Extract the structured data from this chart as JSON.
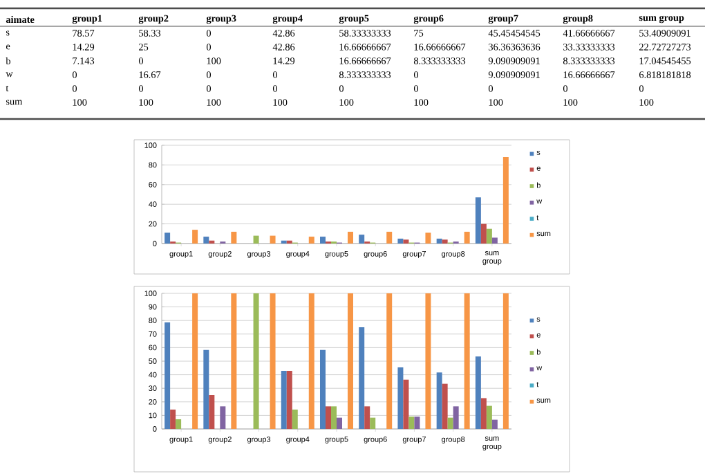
{
  "chart_data": [
    {
      "type": "other",
      "annotations": [
        "aimate",
        "group1",
        "group2",
        "group3",
        "group4",
        "group5",
        "group6",
        "group7",
        "group8",
        "sum group",
        "s",
        "78.57",
        "58.33",
        "0",
        "42.86",
        "58.33333333",
        "75",
        "45.45454545",
        "41.66666667",
        "53.40909091",
        "e",
        "14.29",
        "25",
        "0",
        "42.86",
        "16.66666667",
        "16.66666667",
        "36.36363636",
        "33.33333333",
        "22.72727273",
        "b",
        "7.143",
        "0",
        "100",
        "14.29",
        "16.66666667",
        "8.333333333",
        "9.090909091",
        "8.333333333",
        "17.04545455",
        "w",
        "0",
        "16.67",
        "0",
        "0",
        "8.333333333",
        "0",
        "9.090909091",
        "16.66666667",
        "6.818181818",
        "t",
        "0",
        "0",
        "0",
        "0",
        "0",
        "0",
        "0",
        "0",
        "0",
        "sum",
        "100",
        "100",
        "100",
        "100",
        "100",
        "100",
        "100",
        "100",
        "100"
      ]
    },
    {
      "type": "bar",
      "categories": [
        "group1",
        "group2",
        "group3",
        "group4",
        "group5",
        "group6",
        "group7",
        "group8",
        "sum group"
      ],
      "ylim": [
        0,
        100
      ],
      "yticks": [
        0,
        20,
        40,
        60,
        80,
        100
      ],
      "grid": "y",
      "legend": "right",
      "series": [
        {
          "name": "s",
          "color": "#4f81bd",
          "values": [
            11,
            7,
            0,
            3,
            7,
            9,
            5,
            5,
            47
          ]
        },
        {
          "name": "e",
          "color": "#c0504d",
          "values": [
            2,
            3,
            0,
            3,
            2,
            2,
            4,
            4,
            20
          ]
        },
        {
          "name": "b",
          "color": "#9bbb59",
          "values": [
            1,
            0,
            8,
            1,
            2,
            1,
            1,
            1,
            15
          ]
        },
        {
          "name": "w",
          "color": "#8064a2",
          "values": [
            0,
            2,
            0,
            0,
            1,
            0,
            1,
            2,
            6
          ]
        },
        {
          "name": "t",
          "color": "#4bacc6",
          "values": [
            0,
            0,
            0,
            0,
            0,
            0,
            0,
            0,
            0
          ]
        },
        {
          "name": "sum",
          "color": "#f79646",
          "values": [
            14,
            12,
            8,
            7,
            12,
            12,
            11,
            12,
            88
          ]
        }
      ]
    },
    {
      "type": "bar",
      "categories": [
        "group1",
        "group2",
        "group3",
        "group4",
        "group5",
        "group6",
        "group7",
        "group8",
        "sum group"
      ],
      "ylim": [
        0,
        100
      ],
      "yticks": [
        0,
        10,
        20,
        30,
        40,
        50,
        60,
        70,
        80,
        90,
        100
      ],
      "grid": "y",
      "legend": "right",
      "series": [
        {
          "name": "s",
          "color": "#4f81bd",
          "values": [
            78.57,
            58.33,
            0,
            42.86,
            58.33333333,
            75,
            45.45454545,
            41.66666667,
            53.40909091
          ]
        },
        {
          "name": "e",
          "color": "#c0504d",
          "values": [
            14.29,
            25,
            0,
            42.86,
            16.66666667,
            16.66666667,
            36.36363636,
            33.33333333,
            22.72727273
          ]
        },
        {
          "name": "b",
          "color": "#9bbb59",
          "values": [
            7.143,
            0,
            100,
            14.29,
            16.66666667,
            8.333333333,
            9.090909091,
            8.333333333,
            17.04545455
          ]
        },
        {
          "name": "w",
          "color": "#8064a2",
          "values": [
            0,
            16.67,
            0,
            0,
            8.333333333,
            0,
            9.090909091,
            16.66666667,
            6.818181818
          ]
        },
        {
          "name": "t",
          "color": "#4bacc6",
          "values": [
            0,
            0,
            0,
            0,
            0,
            0,
            0,
            0,
            0
          ]
        },
        {
          "name": "sum",
          "color": "#f79646",
          "values": [
            100,
            100,
            100,
            100,
            100,
            100,
            100,
            100,
            100
          ]
        }
      ]
    }
  ]
}
